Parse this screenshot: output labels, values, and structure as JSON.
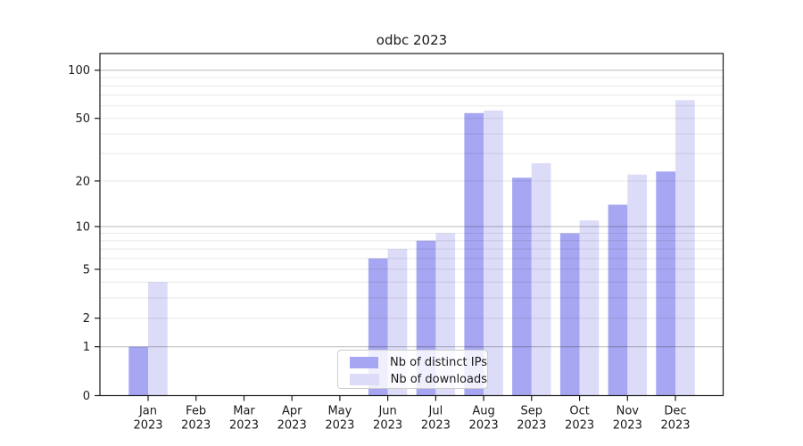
{
  "chart_data": {
    "type": "bar",
    "title": "odbc 2023",
    "xlabel": "",
    "ylabel": "",
    "year": "2023",
    "categories": [
      "Jan",
      "Feb",
      "Mar",
      "Apr",
      "May",
      "Jun",
      "Jul",
      "Aug",
      "Sep",
      "Oct",
      "Nov",
      "Dec"
    ],
    "series": [
      {
        "name": "Nb of distinct IPs",
        "color": "#a6a6f2",
        "values": [
          1,
          0,
          0,
          0,
          0,
          6,
          8,
          54,
          21,
          9,
          14,
          23
        ]
      },
      {
        "name": "Nb of downloads",
        "color": "#dcdcf9",
        "values": [
          4,
          0,
          0,
          0,
          0,
          7,
          9,
          56,
          26,
          11,
          22,
          65
        ]
      }
    ],
    "yscale": "log1p",
    "ylim": [
      0,
      127
    ],
    "ytick_values": [
      0,
      1,
      2,
      5,
      10,
      20,
      50,
      100
    ],
    "grid": true,
    "grid_values": [
      1,
      2,
      3,
      4,
      5,
      6,
      7,
      8,
      9,
      10,
      20,
      30,
      40,
      50,
      60,
      70,
      80,
      90,
      100
    ],
    "major_grid_values": [
      1,
      10,
      100
    ],
    "legend_position": "lower center",
    "colors": {
      "major_grid": "#bbbbbb",
      "minor_grid": "#e8e8e8",
      "axis": "#1a1a1a",
      "text": "#1a1a1a"
    }
  }
}
